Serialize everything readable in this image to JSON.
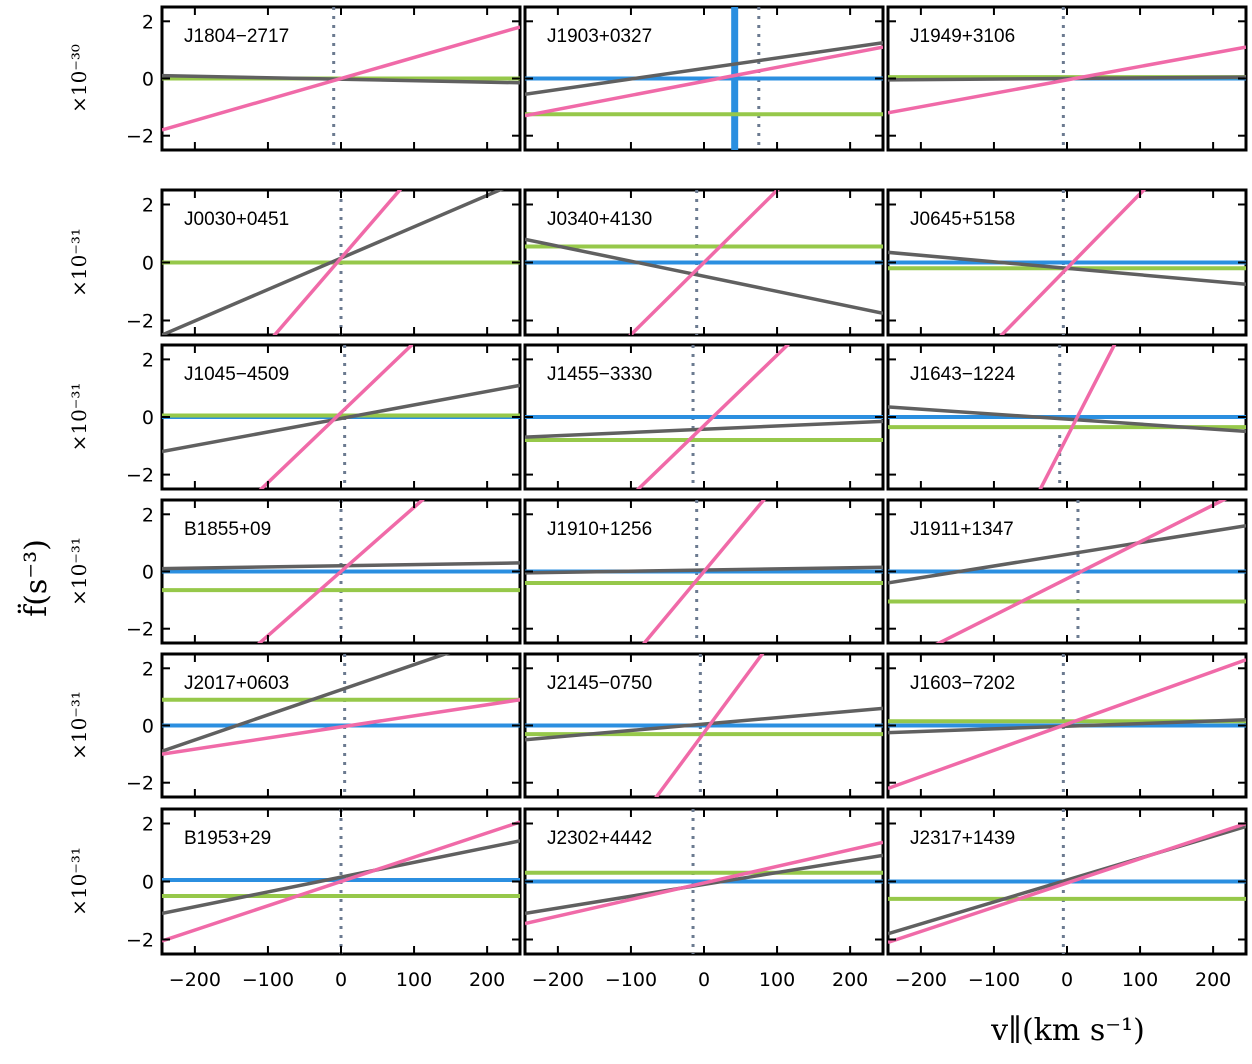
{
  "chart_data": {
    "type": "line",
    "ylabel": "f̈(s⁻³)",
    "xlabel": "v∥(km s⁻¹)",
    "xlim": [
      -245,
      245
    ],
    "ylim": [
      -2.5,
      2.5
    ],
    "x_ticks": [
      "−200",
      "−100",
      "0",
      "100",
      "200"
    ],
    "y_ticks": [
      "−2",
      "0",
      "2"
    ],
    "colors": {
      "pink": "#f06aa8",
      "grey": "#606060",
      "blue": "#2b8fe0",
      "green": "#96c84a",
      "dotted": "#6b7a90"
    },
    "rows": [
      {
        "multiplier": "×10⁻³⁰",
        "panels": [
          {
            "name": "J1804−2717",
            "pink": [
              -1.8,
              1.8
            ],
            "grey": [
              0.1,
              -0.15
            ],
            "blue": 0,
            "green": 0,
            "dotted_x": -10
          },
          {
            "name": "J1903+0327",
            "pink": [
              -1.3,
              1.1
            ],
            "grey": [
              -0.55,
              1.25
            ],
            "blue": 0,
            "green": -1.25,
            "dotted_x": 75,
            "vband_x": 42
          },
          {
            "name": "J1949+3106",
            "pink": [
              -1.2,
              1.1
            ],
            "grey": [
              -0.05,
              0.05
            ],
            "blue": 0,
            "green": 0.05,
            "dotted_x": -5
          }
        ]
      },
      {
        "multiplier": "×10⁻³¹",
        "panels": [
          {
            "name": "J0030+0451",
            "pink": [
              -7,
              7.3
            ],
            "grey": [
              -2.5,
              2.8
            ],
            "blue": 0,
            "green": 0,
            "dotted_x": 0
          },
          {
            "name": "J0340+4130",
            "pink": [
              -6.1,
              6.1
            ],
            "grey": [
              0.8,
              -1.75
            ],
            "blue": 0,
            "green": 0.55,
            "dotted_x": -10
          },
          {
            "name": "J0645+5158",
            "pink": [
              -6.5,
              6.1
            ],
            "grey": [
              0.35,
              -0.75
            ],
            "blue": 0,
            "green": -0.2,
            "dotted_x": -5
          }
        ]
      },
      {
        "multiplier": "×10⁻³¹",
        "panels": [
          {
            "name": "J1045−4509",
            "pink": [
              -5.8,
              6.1
            ],
            "grey": [
              -1.2,
              1.1
            ],
            "blue": 0,
            "green": 0.05,
            "dotted_x": 5
          },
          {
            "name": "J1455−3330",
            "pink": [
              -6.3,
              5.7
            ],
            "grey": [
              -0.7,
              -0.15
            ],
            "blue": 0,
            "green": -0.8,
            "dotted_x": -15
          },
          {
            "name": "J1643−1224",
            "pink": [
              -12.8,
              11.4
            ],
            "grey": [
              0.35,
              -0.5
            ],
            "blue": 0,
            "green": -0.35,
            "dotted_x": -10
          }
        ]
      },
      {
        "multiplier": "×10⁻³¹",
        "panels": [
          {
            "name": "B1855+09",
            "pink": [
              -5.5,
              5.5
            ],
            "grey": [
              0.1,
              0.3
            ],
            "blue": 0,
            "green": -0.65,
            "dotted_x": 0
          },
          {
            "name": "J1910+1256",
            "pink": [
              -7.5,
              7.5
            ],
            "grey": [
              -0.05,
              0.15
            ],
            "blue": 0,
            "green": -0.4,
            "dotted_x": -10
          },
          {
            "name": "J1911+1347",
            "pink": [
              -3.4,
              2.9
            ],
            "grey": [
              -0.4,
              1.6
            ],
            "blue": 0,
            "green": -1.05,
            "dotted_x": 15
          }
        ]
      },
      {
        "multiplier": "×10⁻³¹",
        "panels": [
          {
            "name": "J2017+0603",
            "pink": [
              -1.0,
              0.9
            ],
            "grey": [
              -0.9,
              3.4
            ],
            "blue": 0,
            "green": 0.9,
            "dotted_x": 5
          },
          {
            "name": "J2145−0750",
            "pink": [
              -8.7,
              8.2
            ],
            "grey": [
              -0.5,
              0.6
            ],
            "blue": 0,
            "green": -0.3,
            "dotted_x": -5
          },
          {
            "name": "J1603−7202",
            "pink": [
              -2.2,
              2.3
            ],
            "grey": [
              -0.25,
              0.2
            ],
            "blue": 0,
            "green": 0.15,
            "dotted_x": -5
          }
        ]
      },
      {
        "multiplier": "×10⁻³¹",
        "panels": [
          {
            "name": "B1953+29",
            "pink": [
              -2.05,
              2.05
            ],
            "grey": [
              -1.1,
              1.4
            ],
            "blue": 0.05,
            "green": -0.5,
            "dotted_x": 0
          },
          {
            "name": "J2302+4442",
            "pink": [
              -1.45,
              1.35
            ],
            "grey": [
              -1.1,
              0.9
            ],
            "blue": 0,
            "green": 0.3,
            "dotted_x": -15
          },
          {
            "name": "J2317+1439",
            "pink": [
              -2.1,
              2.0
            ],
            "grey": [
              -1.8,
              1.9
            ],
            "blue": 0,
            "green": -0.6,
            "dotted_x": -5
          }
        ]
      }
    ]
  }
}
